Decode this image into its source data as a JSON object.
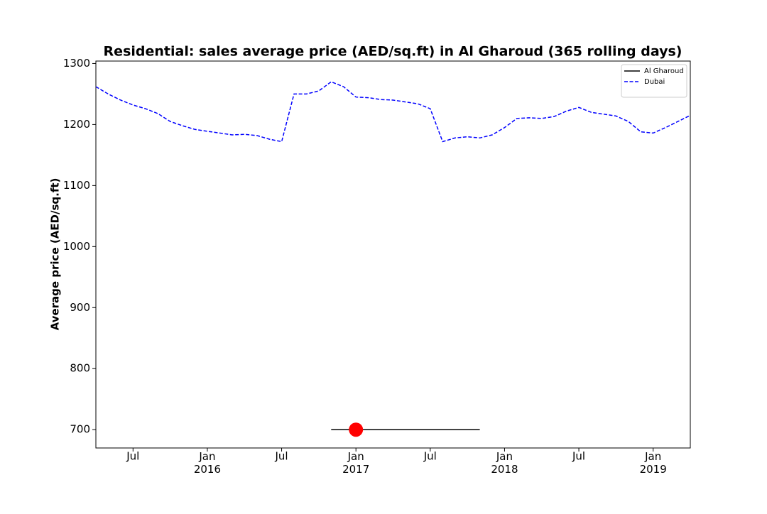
{
  "chart_data": {
    "type": "line",
    "title": "Residential: sales average price (AED/sq.ft) in Al Gharoud (365 rolling days)",
    "ylabel": "Average price (AED/sq.ft)",
    "x": [
      "2015-04",
      "2015-05",
      "2015-06",
      "2015-07",
      "2015-08",
      "2015-09",
      "2015-10",
      "2015-11",
      "2015-12",
      "2016-01",
      "2016-02",
      "2016-03",
      "2016-04",
      "2016-05",
      "2016-06",
      "2016-07",
      "2016-08",
      "2016-09",
      "2016-10",
      "2016-11",
      "2016-12",
      "2017-01",
      "2017-02",
      "2017-03",
      "2017-04",
      "2017-05",
      "2017-06",
      "2017-07",
      "2017-08",
      "2017-09",
      "2017-10",
      "2017-11",
      "2017-12",
      "2018-01",
      "2018-02",
      "2018-03",
      "2018-04",
      "2018-05",
      "2018-06",
      "2018-07",
      "2018-08",
      "2018-09",
      "2018-10",
      "2018-11",
      "2018-12",
      "2019-01",
      "2019-02",
      "2019-03",
      "2019-04"
    ],
    "series": [
      {
        "name": "Al Gharoud",
        "color": "#000000",
        "style": "solid",
        "values": [
          null,
          null,
          null,
          null,
          null,
          null,
          null,
          null,
          null,
          null,
          null,
          null,
          null,
          null,
          null,
          null,
          null,
          null,
          null,
          700,
          700,
          700,
          700,
          700,
          700,
          700,
          700,
          700,
          700,
          700,
          700,
          700,
          null,
          null,
          null,
          null,
          null,
          null,
          null,
          null,
          null,
          null,
          null,
          null,
          null,
          null,
          null,
          null,
          null
        ]
      },
      {
        "name": "Dubai",
        "color": "#0000ff",
        "style": "dashed",
        "values": [
          1262,
          1250,
          1240,
          1232,
          1226,
          1218,
          1205,
          1198,
          1192,
          1189,
          1186,
          1183,
          1184,
          1182,
          1176,
          1172,
          1250,
          1250,
          1255,
          1270,
          1262,
          1245,
          1244,
          1241,
          1240,
          1237,
          1234,
          1226,
          1172,
          1178,
          1180,
          1178,
          1183,
          1195,
          1210,
          1211,
          1210,
          1213,
          1222,
          1228,
          1220,
          1217,
          1214,
          1205,
          1188,
          1186,
          1195,
          1205,
          1215
        ]
      }
    ],
    "highlight": {
      "x": "2017-01",
      "value": 700,
      "color": "#ff0000"
    },
    "xlim": [
      "2015-04",
      "2019-04"
    ],
    "xticks": [
      {
        "value": "2015-07",
        "label": "Jul"
      },
      {
        "value": "2016-01",
        "label": "Jan\n2016"
      },
      {
        "value": "2016-07",
        "label": "Jul"
      },
      {
        "value": "2017-01",
        "label": "Jan\n2017"
      },
      {
        "value": "2017-07",
        "label": "Jul"
      },
      {
        "value": "2018-01",
        "label": "Jan\n2018"
      },
      {
        "value": "2018-07",
        "label": "Jul"
      },
      {
        "value": "2019-01",
        "label": "Jan\n2019"
      }
    ],
    "ylim": [
      670,
      1304
    ],
    "yticks": [
      700,
      800,
      900,
      1000,
      1100,
      1200,
      1300
    ],
    "grid": false,
    "legend": "upper right"
  }
}
